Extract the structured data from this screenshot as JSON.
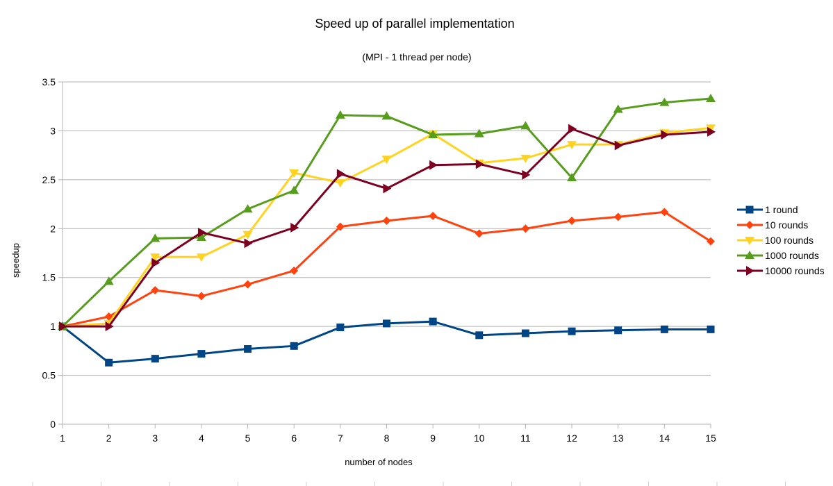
{
  "chart_data": {
    "type": "line",
    "title": "Speed up of parallel implementation",
    "subtitle": "(MPI - 1 thread per node)",
    "xlabel": "number of nodes",
    "ylabel": "speedup",
    "x": [
      1,
      2,
      3,
      4,
      5,
      6,
      7,
      8,
      9,
      10,
      11,
      12,
      13,
      14,
      15
    ],
    "xlim": [
      1,
      15
    ],
    "ylim": [
      0,
      3.5
    ],
    "yticks": [
      "0",
      "0.5",
      "1",
      "1.5",
      "2",
      "2.5",
      "3",
      "3.5"
    ],
    "grid": "horizontal",
    "legend_position": "right",
    "series": [
      {
        "name": "1 round",
        "color": "#004586",
        "marker": "square",
        "values": [
          1.0,
          0.63,
          0.67,
          0.72,
          0.77,
          0.8,
          0.99,
          1.03,
          1.05,
          0.91,
          0.93,
          0.95,
          0.96,
          0.97,
          0.97
        ]
      },
      {
        "name": "10 rounds",
        "color": "#ff420e",
        "marker": "diamond",
        "values": [
          1.0,
          1.1,
          1.37,
          1.31,
          1.43,
          1.57,
          2.02,
          2.08,
          2.13,
          1.95,
          2.0,
          2.08,
          2.12,
          2.17,
          1.87
        ]
      },
      {
        "name": "100 rounds",
        "color": "#ffd320",
        "marker": "triangle-down",
        "values": [
          1.0,
          1.03,
          1.71,
          1.71,
          1.94,
          2.57,
          2.47,
          2.71,
          2.97,
          2.67,
          2.72,
          2.86,
          2.86,
          2.98,
          3.03
        ]
      },
      {
        "name": "1000 rounds",
        "color": "#579d1c",
        "marker": "triangle-up",
        "values": [
          1.0,
          1.46,
          1.9,
          1.91,
          2.2,
          2.39,
          3.16,
          3.15,
          2.96,
          2.97,
          3.05,
          2.52,
          3.22,
          3.29,
          3.33
        ]
      },
      {
        "name": "10000 rounds",
        "color": "#7e0021",
        "marker": "triangle-right",
        "values": [
          1.0,
          1.0,
          1.65,
          1.96,
          1.85,
          2.01,
          2.56,
          2.41,
          2.65,
          2.66,
          2.55,
          3.02,
          2.85,
          2.96,
          2.99
        ]
      }
    ]
  }
}
